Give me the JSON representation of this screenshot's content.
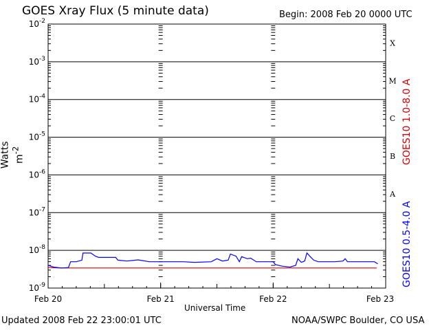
{
  "header": {
    "title": "GOES Xray Flux (5 minute data)",
    "begin": "Begin:  2008 Feb 20 0000 UTC"
  },
  "footer": {
    "updated": "Updated 2008 Feb 22 23:00:01 UTC",
    "credit": "NOAA/SWPC Boulder, CO USA"
  },
  "colors": {
    "long_channel": "#d40000",
    "short_channel": "#0000ff",
    "grid": "#000000"
  },
  "chart_data": {
    "type": "line",
    "xlabel": "Universal Time",
    "ylabel": "Watts m",
    "ylabel_superscript": "-2",
    "yscale": "log",
    "ylim": [
      1e-09,
      0.01
    ],
    "xlim_days": [
      0,
      3
    ],
    "grid": true,
    "y_ticks": [
      {
        "base": "10",
        "exp": "-9",
        "value": 1e-09
      },
      {
        "base": "10",
        "exp": "-8",
        "value": 1e-08
      },
      {
        "base": "10",
        "exp": "-7",
        "value": 1e-07
      },
      {
        "base": "10",
        "exp": "-6",
        "value": 1e-06
      },
      {
        "base": "10",
        "exp": "-5",
        "value": 1e-05
      },
      {
        "base": "10",
        "exp": "-4",
        "value": 0.0001
      },
      {
        "base": "10",
        "exp": "-3",
        "value": 0.001
      },
      {
        "base": "10",
        "exp": "-2",
        "value": 0.01
      }
    ],
    "x_ticks": [
      {
        "label": "Feb 20",
        "day": 0
      },
      {
        "label": "Feb 21",
        "day": 1
      },
      {
        "label": "Feb 22",
        "day": 2
      },
      {
        "label": "Feb 23",
        "day": 3
      }
    ],
    "flare_classes": [
      {
        "label": "A",
        "value": 1e-07
      },
      {
        "label": "B",
        "value": 1e-06
      },
      {
        "label": "C",
        "value": 1e-05
      },
      {
        "label": "M",
        "value": 0.0001
      },
      {
        "label": "X",
        "value": 0.001
      }
    ],
    "series": [
      {
        "name": "GOES10 1.0-8.0 A",
        "color": "#d40000",
        "points": [
          [
            0.0,
            3.5e-09
          ],
          [
            0.1,
            3.4e-09
          ],
          [
            0.2,
            3.4e-09
          ],
          [
            0.6,
            3.4e-09
          ],
          [
            1.0,
            3.4e-09
          ],
          [
            1.5,
            3.4e-09
          ],
          [
            2.0,
            3.4e-09
          ],
          [
            2.5,
            3.4e-09
          ],
          [
            2.85,
            3.4e-09
          ],
          [
            2.92,
            3.4e-09
          ]
        ]
      },
      {
        "name": "GOES10 0.5-4.0 A",
        "color": "#0000ff",
        "points": [
          [
            0.0,
            4e-09
          ],
          [
            0.05,
            3.6e-09
          ],
          [
            0.12,
            3.4e-09
          ],
          [
            0.18,
            3.5e-09
          ],
          [
            0.2,
            5e-09
          ],
          [
            0.25,
            5e-09
          ],
          [
            0.3,
            5.5e-09
          ],
          [
            0.31,
            8.5e-09
          ],
          [
            0.38,
            8.5e-09
          ],
          [
            0.42,
            7e-09
          ],
          [
            0.45,
            6.5e-09
          ],
          [
            0.6,
            6.5e-09
          ],
          [
            0.62,
            5.5e-09
          ],
          [
            0.7,
            5.2e-09
          ],
          [
            0.8,
            5.6e-09
          ],
          [
            0.9,
            5e-09
          ],
          [
            1.0,
            5e-09
          ],
          [
            1.2,
            5e-09
          ],
          [
            1.3,
            4.8e-09
          ],
          [
            1.45,
            5e-09
          ],
          [
            1.5,
            6e-09
          ],
          [
            1.55,
            5.2e-09
          ],
          [
            1.6,
            5.5e-09
          ],
          [
            1.62,
            8e-09
          ],
          [
            1.67,
            7e-09
          ],
          [
            1.7,
            5e-09
          ],
          [
            1.72,
            6.8e-09
          ],
          [
            1.77,
            6e-09
          ],
          [
            1.8,
            6.2e-09
          ],
          [
            1.85,
            5e-09
          ],
          [
            2.0,
            5e-09
          ],
          [
            2.02,
            4.2e-09
          ],
          [
            2.08,
            3.8e-09
          ],
          [
            2.15,
            3.6e-09
          ],
          [
            2.2,
            4e-09
          ],
          [
            2.22,
            6e-09
          ],
          [
            2.25,
            4.8e-09
          ],
          [
            2.28,
            5.2e-09
          ],
          [
            2.3,
            8.5e-09
          ],
          [
            2.33,
            6.8e-09
          ],
          [
            2.36,
            5.5e-09
          ],
          [
            2.4,
            5e-09
          ],
          [
            2.55,
            5e-09
          ],
          [
            2.62,
            5.2e-09
          ],
          [
            2.64,
            6e-09
          ],
          [
            2.66,
            5e-09
          ],
          [
            2.9,
            5e-09
          ],
          [
            2.93,
            4.4e-09
          ]
        ]
      }
    ]
  }
}
